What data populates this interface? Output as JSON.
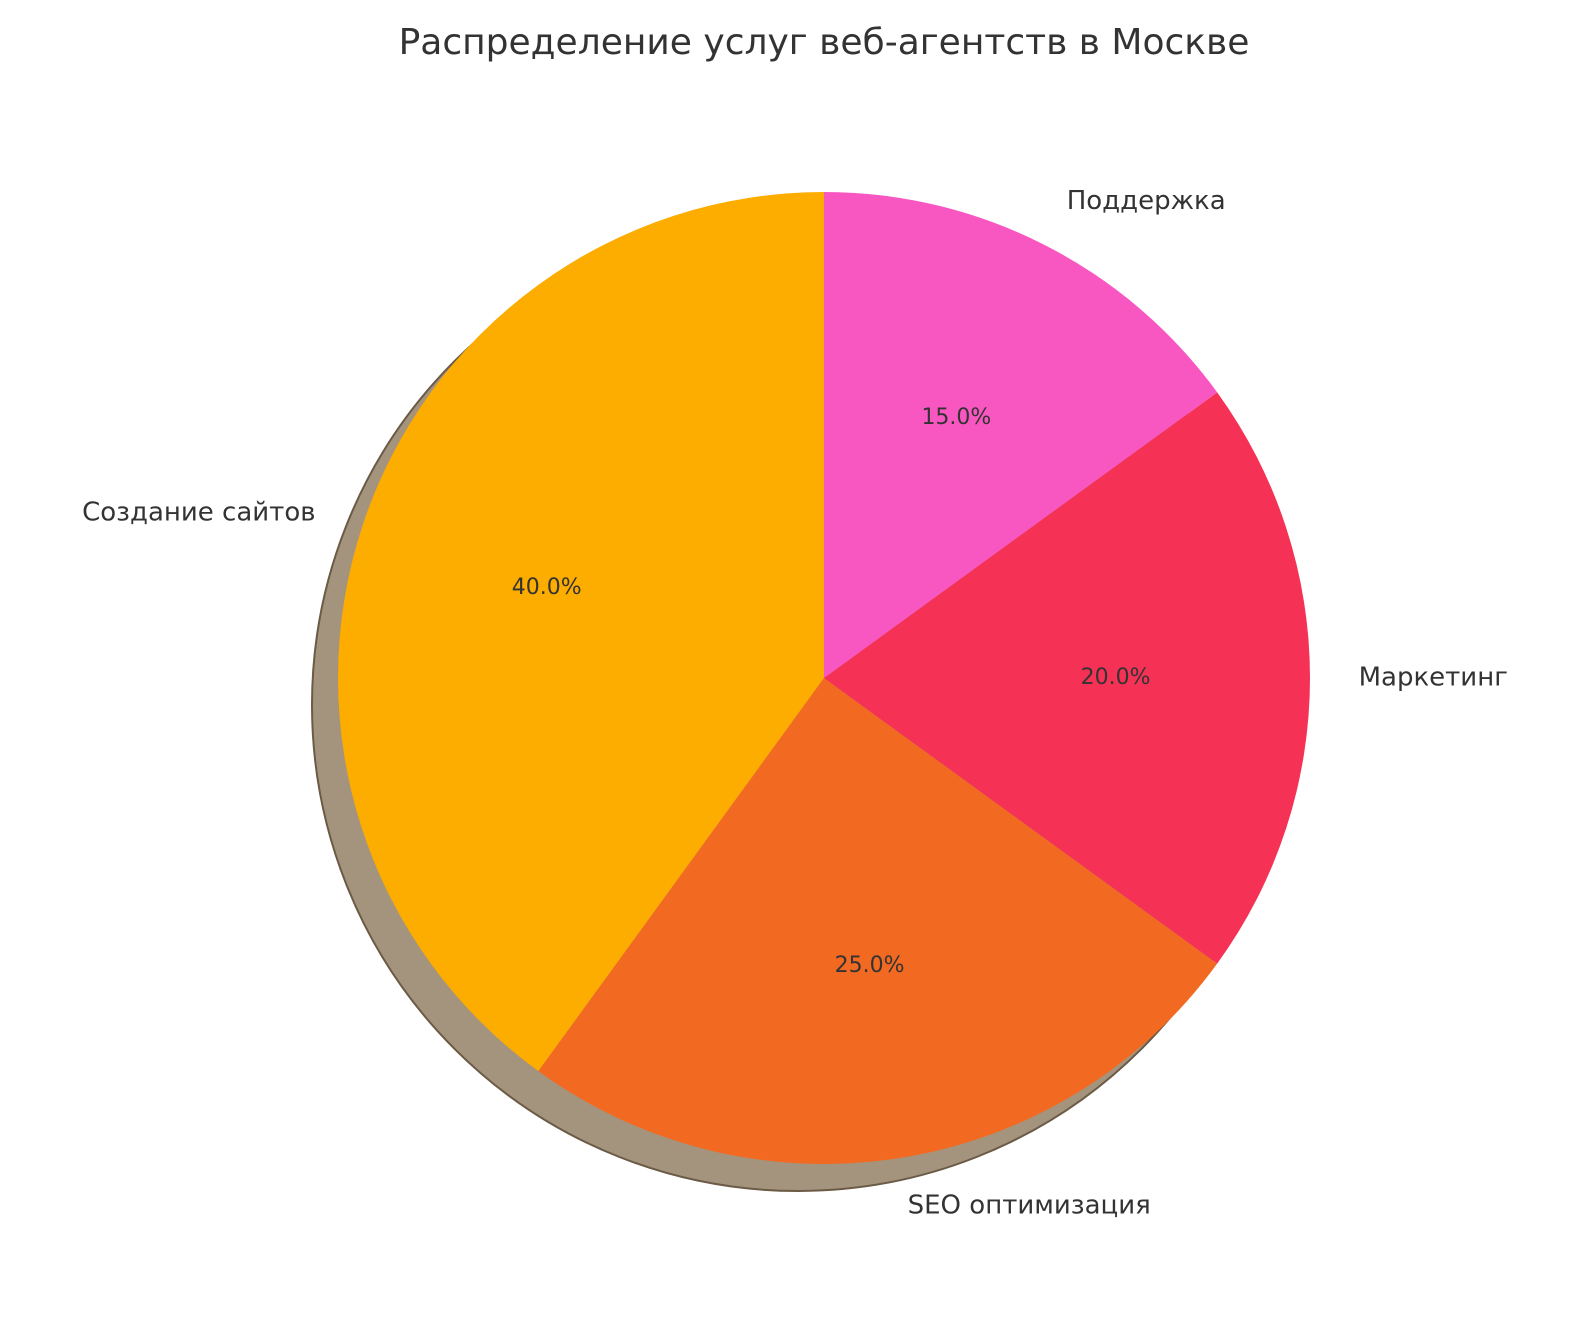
{
  "chart_data": {
    "type": "pie",
    "title": "Распределение услуг веб-агентств в Москве",
    "categories": [
      "Создание сайтов",
      "SEO оптимизация",
      "Маркетинг",
      "Поддержка"
    ],
    "values": [
      40.0,
      25.0,
      20.0,
      15.0
    ],
    "percent_labels": [
      "40.0%",
      "25.0%",
      "20.0%",
      "15.0%"
    ],
    "colors": [
      "#FDAC00",
      "#F26A22",
      "#F53256",
      "#F857C1"
    ],
    "start_angle": 90,
    "direction": "counterclockwise",
    "shadow": true,
    "legend": "none"
  }
}
